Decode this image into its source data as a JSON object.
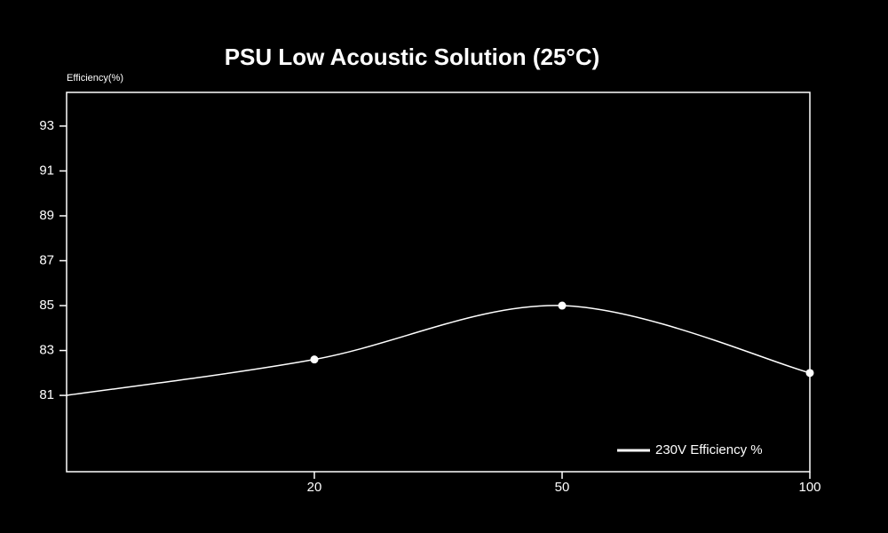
{
  "chart_data": {
    "type": "line",
    "title": "PSU Low Acoustic Solution (25°C)",
    "y_label": "Efficiency(%)",
    "categories": [
      null,
      "20",
      "50",
      "100"
    ],
    "series": [
      {
        "name": "230V Efficiency %",
        "color": "#ffffff",
        "values": [
          81.0,
          82.6,
          85.0,
          82.0
        ]
      }
    ],
    "ylim": [
      77.6,
      94.5
    ],
    "yticks": [
      81,
      83,
      85,
      87,
      89,
      91,
      93
    ],
    "legend": "lower right"
  }
}
